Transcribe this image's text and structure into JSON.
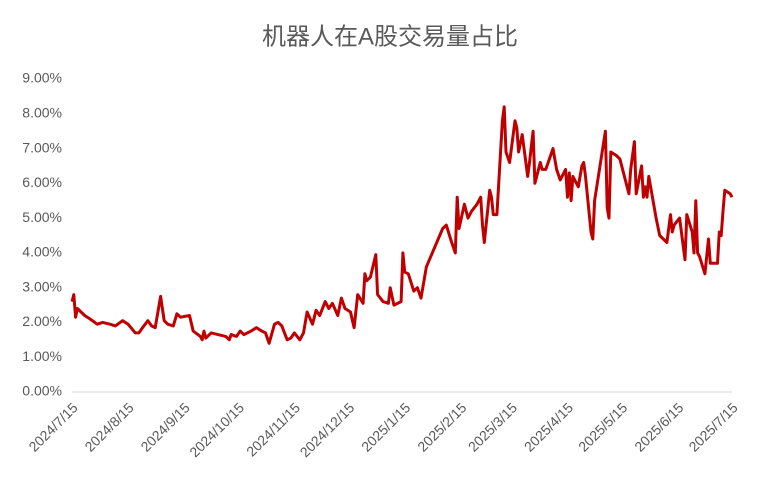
{
  "chart_data": {
    "type": "line",
    "title": "机器人在A股交易量占比",
    "x": [
      "2024/7/15",
      "2024/7/16",
      "2024/7/17",
      "2024/7/18",
      "2024/7/22",
      "2024/7/25",
      "2024/7/29",
      "2024/8/1",
      "2024/8/5",
      "2024/8/8",
      "2024/8/12",
      "2024/8/15",
      "2024/8/19",
      "2024/8/21",
      "2024/8/23",
      "2024/8/26",
      "2024/8/28",
      "2024/8/30",
      "2024/9/2",
      "2024/9/4",
      "2024/9/6",
      "2024/9/9",
      "2024/9/11",
      "2024/9/13",
      "2024/9/18",
      "2024/9/20",
      "2024/9/24",
      "2024/9/25",
      "2024/9/26",
      "2024/9/27",
      "2024/9/30",
      "2024/10/8",
      "2024/10/10",
      "2024/10/11",
      "2024/10/14",
      "2024/10/16",
      "2024/10/18",
      "2024/10/22",
      "2024/10/25",
      "2024/10/28",
      "2024/10/30",
      "2024/11/1",
      "2024/11/4",
      "2024/11/6",
      "2024/11/8",
      "2024/11/11",
      "2024/11/13",
      "2024/11/15",
      "2024/11/18",
      "2024/11/20",
      "2024/11/22",
      "2024/11/25",
      "2024/11/27",
      "2024/11/29",
      "2024/12/2",
      "2024/12/4",
      "2024/12/6",
      "2024/12/9",
      "2024/12/11",
      "2024/12/13",
      "2024/12/16",
      "2024/12/18",
      "2024/12/20",
      "2024/12/23",
      "2024/12/24",
      "2024/12/25",
      "2024/12/27",
      "2024/12/30",
      "2024/12/31",
      "2025/1/3",
      "2025/1/6",
      "2025/1/7",
      "2025/1/9",
      "2025/1/13",
      "2025/1/14",
      "2025/1/15",
      "2025/1/17",
      "2025/1/20",
      "2025/1/22",
      "2025/1/24",
      "2025/1/27",
      "2025/2/5",
      "2025/2/7",
      "2025/2/10",
      "2025/2/12",
      "2025/2/13",
      "2025/2/14",
      "2025/2/17",
      "2025/2/19",
      "2025/2/21",
      "2025/2/24",
      "2025/2/26",
      "2025/2/27",
      "2025/2/28",
      "2025/3/3",
      "2025/3/4",
      "2025/3/5",
      "2025/3/7",
      "2025/3/10",
      "2025/3/11",
      "2025/3/12",
      "2025/3/14",
      "2025/3/17",
      "2025/3/18",
      "2025/3/19",
      "2025/3/21",
      "2025/3/24",
      "2025/3/25",
      "2025/3/27",
      "2025/3/28",
      "2025/3/31",
      "2025/4/1",
      "2025/4/3",
      "2025/4/7",
      "2025/4/9",
      "2025/4/11",
      "2025/4/14",
      "2025/4/15",
      "2025/4/16",
      "2025/4/17",
      "2025/4/18",
      "2025/4/21",
      "2025/4/23",
      "2025/4/24",
      "2025/4/25",
      "2025/4/28",
      "2025/4/29",
      "2025/4/30",
      "2025/5/6",
      "2025/5/7",
      "2025/5/8",
      "2025/5/9",
      "2025/5/12",
      "2025/5/14",
      "2025/5/16",
      "2025/5/19",
      "2025/5/20",
      "2025/5/22",
      "2025/5/23",
      "2025/5/26",
      "2025/5/27",
      "2025/5/28",
      "2025/5/29",
      "2025/5/30",
      "2025/6/3",
      "2025/6/5",
      "2025/6/9",
      "2025/6/11",
      "2025/6/12",
      "2025/6/13",
      "2025/6/16",
      "2025/6/18",
      "2025/6/19",
      "2025/6/20",
      "2025/6/23",
      "2025/6/24",
      "2025/6/25",
      "2025/6/26",
      "2025/6/27",
      "2025/6/30",
      "2025/7/1",
      "2025/7/2",
      "2025/7/3",
      "2025/7/7",
      "2025/7/8",
      "2025/7/9",
      "2025/7/10",
      "2025/7/11",
      "2025/7/14",
      "2025/7/15"
    ],
    "series": [
      {
        "color": "#c00000",
        "values": [
          2.6,
          2.8,
          2.15,
          2.4,
          2.2,
          2.1,
          1.95,
          2.0,
          1.95,
          1.9,
          2.05,
          1.95,
          1.7,
          1.7,
          1.85,
          2.05,
          1.9,
          1.85,
          2.75,
          2.05,
          1.95,
          1.9,
          2.25,
          2.15,
          2.2,
          1.75,
          1.6,
          1.5,
          1.75,
          1.55,
          1.7,
          1.6,
          1.5,
          1.65,
          1.6,
          1.75,
          1.65,
          1.75,
          1.85,
          1.75,
          1.7,
          1.4,
          1.95,
          2.0,
          1.9,
          1.5,
          1.55,
          1.7,
          1.5,
          1.7,
          2.3,
          1.95,
          2.35,
          2.2,
          2.6,
          2.4,
          2.55,
          2.2,
          2.7,
          2.4,
          2.3,
          1.85,
          2.8,
          2.55,
          3.4,
          3.2,
          3.3,
          3.95,
          2.8,
          2.6,
          2.55,
          3.0,
          2.5,
          2.6,
          4.0,
          3.45,
          3.4,
          2.9,
          3.0,
          2.7,
          3.6,
          4.7,
          4.8,
          4.3,
          4.0,
          5.6,
          4.7,
          5.4,
          5.0,
          5.2,
          5.4,
          5.6,
          4.8,
          4.3,
          5.8,
          5.6,
          5.1,
          5.1,
          7.8,
          8.2,
          6.9,
          6.6,
          7.8,
          7.6,
          6.9,
          7.4,
          6.2,
          6.6,
          7.5,
          6.0,
          6.6,
          6.4,
          6.4,
          7.0,
          6.4,
          6.1,
          6.4,
          5.6,
          6.3,
          5.5,
          6.2,
          5.9,
          6.5,
          6.6,
          6.2,
          4.6,
          4.4,
          5.5,
          7.5,
          5.3,
          5.0,
          6.9,
          6.8,
          6.7,
          6.3,
          5.7,
          6.4,
          7.2,
          5.7,
          6.5,
          5.6,
          5.9,
          5.6,
          6.2,
          5.0,
          4.5,
          4.3,
          5.1,
          4.6,
          4.8,
          5.0,
          4.2,
          3.8,
          5.1,
          4.6,
          4.0,
          5.5,
          4.0,
          3.9,
          3.4,
          3.9,
          4.4,
          3.7,
          3.7,
          4.6,
          4.5,
          5.2,
          5.8,
          5.7,
          5.6
        ]
      }
    ],
    "xlim": [
      "2024/7/15",
      "2025/7/15"
    ],
    "xticks": [
      "2024/7/15",
      "2024/8/15",
      "2024/9/15",
      "2024/10/15",
      "2024/11/15",
      "2024/12/15",
      "2025/1/15",
      "2025/2/15",
      "2025/3/15",
      "2025/4/15",
      "2025/5/15",
      "2025/6/15",
      "2025/7/15"
    ],
    "ylim": [
      0,
      9
    ],
    "yticks": [
      {
        "value": 0,
        "label": "0.00%"
      },
      {
        "value": 1,
        "label": "1.00%"
      },
      {
        "value": 2,
        "label": "2.00%"
      },
      {
        "value": 3,
        "label": "3.00%"
      },
      {
        "value": 4,
        "label": "4.00%"
      },
      {
        "value": 5,
        "label": "5.00%"
      },
      {
        "value": 6,
        "label": "6.00%"
      },
      {
        "value": 7,
        "label": "7.00%"
      },
      {
        "value": 8,
        "label": "8.00%"
      },
      {
        "value": 9,
        "label": "9.00%"
      }
    ],
    "grid": false
  }
}
